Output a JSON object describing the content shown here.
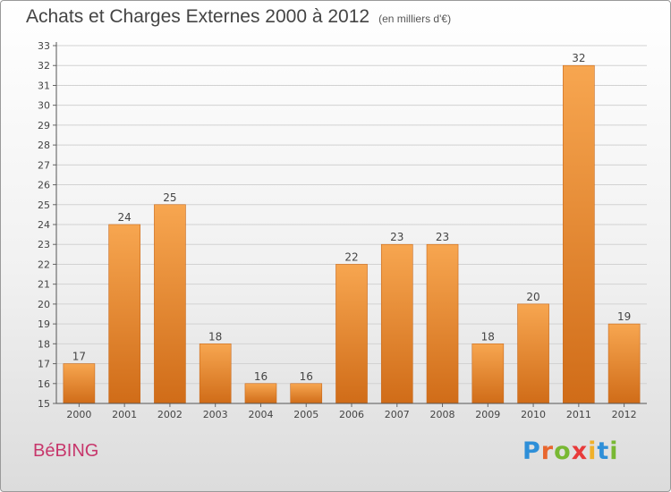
{
  "header": {
    "title": "Achats et Charges Externes 2000 à 2012",
    "unit": "(en milliers d'€)"
  },
  "footer": {
    "commune": "BéBING",
    "brand": {
      "letters": [
        "P",
        "r",
        "o",
        "x",
        "i",
        "t",
        "i"
      ],
      "colors": [
        "#2e8fd8",
        "#e8662e",
        "#78b833",
        "#e83a3a",
        "#f0b02a",
        "#2e8fd8",
        "#78b833"
      ]
    }
  },
  "chart_data": {
    "type": "bar",
    "categories": [
      "2000",
      "2001",
      "2002",
      "2003",
      "2004",
      "2005",
      "2006",
      "2007",
      "2008",
      "2009",
      "2010",
      "2011",
      "2012"
    ],
    "values": [
      17,
      24,
      25,
      18,
      16,
      16,
      22,
      23,
      23,
      18,
      20,
      32,
      19
    ],
    "data_labels": [
      "17",
      "24",
      "25",
      "18",
      "16",
      "16",
      "22",
      "23",
      "23",
      "18",
      "20",
      "32",
      "19"
    ],
    "ylim": [
      15,
      33
    ],
    "yticks": [
      "15",
      "16",
      "17",
      "18",
      "19",
      "20",
      "21",
      "22",
      "23",
      "24",
      "25",
      "26",
      "27",
      "28",
      "29",
      "30",
      "31",
      "32",
      "33"
    ],
    "grid": true,
    "bar_color": "#f0923a"
  }
}
